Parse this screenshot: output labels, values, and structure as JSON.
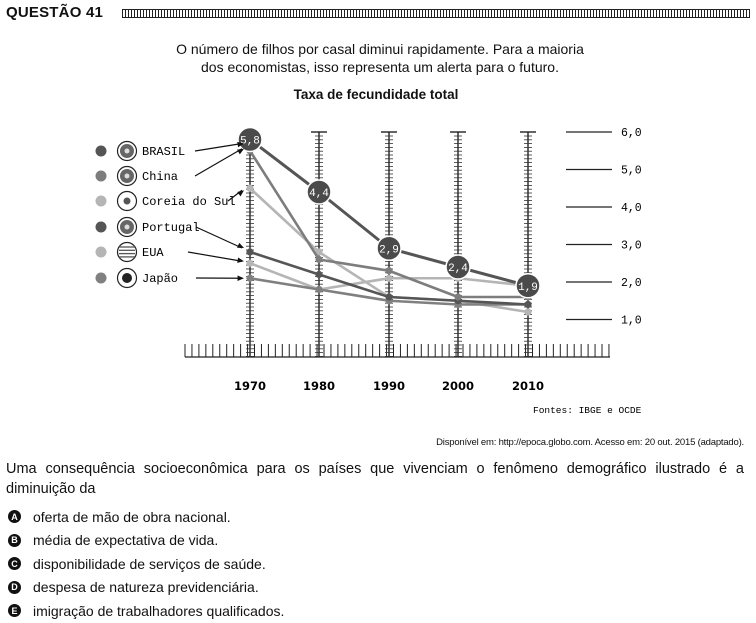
{
  "question": {
    "title": "QUESTÃO 41",
    "intro_line1": "O número de filhos por casal diminui rapidamente. Para a maioria",
    "intro_line2": "dos economistas, isso representa um alerta para o futuro.",
    "source_note": "Disponível em: http://epoca.globo.com. Acesso em: 20 out. 2015 (adaptado).",
    "stem": "Uma consequência socioeconômica para os países que vivenciam o fenômeno demográfico ilustrado é a diminuição da",
    "options": [
      {
        "letter": "A",
        "text": "oferta de mão de obra nacional."
      },
      {
        "letter": "B",
        "text": "média de expectativa de vida."
      },
      {
        "letter": "C",
        "text": "disponibilidade de serviços de saúde."
      },
      {
        "letter": "D",
        "text": "despesa de natureza previdenciária."
      },
      {
        "letter": "E",
        "text": "imigração de trabalhadores qualificados."
      }
    ]
  },
  "chart_data": {
    "type": "line",
    "title": "Taxa de fecundidade total",
    "x": [
      1970,
      1980,
      1990,
      2000,
      2010
    ],
    "y_ticks": [
      "6,0",
      "5,0",
      "4,0",
      "3,0",
      "2,0",
      "1,0"
    ],
    "ylim": [
      0,
      6
    ],
    "source": "Fontes: IBGE e OCDE",
    "series": [
      {
        "name": "BRASIL",
        "color": "#555555",
        "values": [
          5.8,
          4.4,
          2.9,
          2.4,
          1.9
        ],
        "point_labels": [
          "5,8",
          "4,4",
          "2,9",
          "2,4",
          "1,9"
        ]
      },
      {
        "name": "China",
        "color": "#7d7d7d",
        "values": [
          5.5,
          2.6,
          2.3,
          1.6,
          1.6
        ]
      },
      {
        "name": "Coreia do Sul",
        "color": "#b5b5b5",
        "values": [
          4.5,
          2.8,
          1.6,
          1.5,
          1.2
        ]
      },
      {
        "name": "Portugal",
        "color": "#555555",
        "values": [
          2.8,
          2.2,
          1.6,
          1.5,
          1.4
        ]
      },
      {
        "name": "EUA",
        "color": "#b5b5b5",
        "values": [
          2.5,
          1.8,
          2.1,
          2.1,
          1.9
        ]
      },
      {
        "name": "Japão",
        "color": "#808080",
        "values": [
          2.1,
          1.8,
          1.5,
          1.4,
          1.4
        ]
      }
    ]
  }
}
